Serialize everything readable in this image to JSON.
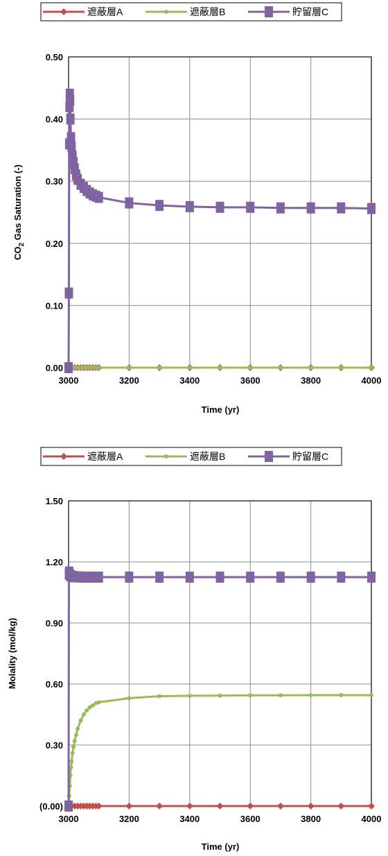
{
  "chart_data": [
    {
      "type": "line",
      "title": "",
      "xlabel": "Time (yr)",
      "ylabel_prefix": "CO",
      "ylabel_sub": "2",
      "ylabel_rest": " Gas Saturation (-)",
      "xlim": [
        3000,
        4000
      ],
      "ylim": [
        0,
        0.5
      ],
      "xticks": [
        3000,
        3200,
        3400,
        3600,
        3800,
        4000
      ],
      "yticks": [
        0,
        0.1,
        0.2,
        0.3,
        0.4,
        0.5
      ],
      "ytick_labels": [
        "0.00",
        "0.10",
        "0.20",
        "0.30",
        "0.40",
        "0.50"
      ],
      "grid": true,
      "legend_placement": "top",
      "series": [
        {
          "name": "遮蔽層A",
          "color": "#c0504d",
          "marker": "diamond",
          "x": [
            3000,
            3005,
            3010,
            3020,
            3030,
            3040,
            3050,
            3060,
            3070,
            3080,
            3090,
            3100,
            3200,
            3300,
            3400,
            3500,
            3600,
            3700,
            3800,
            3900,
            4000
          ],
          "y": [
            0,
            0,
            0,
            0,
            0,
            0,
            0,
            0,
            0,
            0,
            0,
            0,
            0,
            0,
            0,
            0,
            0,
            0,
            0,
            0,
            0
          ]
        },
        {
          "name": "遮蔽層B",
          "color": "#9bbb59",
          "marker": "circle",
          "x": [
            3000,
            3005,
            3010,
            3020,
            3030,
            3040,
            3050,
            3060,
            3070,
            3080,
            3090,
            3100,
            3200,
            3300,
            3400,
            3500,
            3600,
            3700,
            3800,
            3900,
            4000
          ],
          "y": [
            0,
            0,
            0,
            0,
            0,
            0,
            0,
            0,
            0,
            0,
            0,
            0,
            0,
            0,
            0,
            0,
            0,
            0,
            0,
            0,
            0
          ]
        },
        {
          "name": "貯留層C",
          "color": "#8064a2",
          "marker": "square",
          "x": [
            3000,
            3001,
            3002,
            3003,
            3004,
            3005,
            3006,
            3008,
            3010,
            3013,
            3016,
            3020,
            3025,
            3030,
            3040,
            3050,
            3060,
            3070,
            3080,
            3090,
            3100,
            3200,
            3300,
            3400,
            3500,
            3600,
            3700,
            3800,
            3900,
            4000
          ],
          "y": [
            0,
            0.12,
            0.36,
            0.42,
            0.44,
            0.43,
            0.4,
            0.37,
            0.355,
            0.34,
            0.33,
            0.32,
            0.31,
            0.303,
            0.295,
            0.29,
            0.285,
            0.281,
            0.278,
            0.276,
            0.274,
            0.265,
            0.261,
            0.259,
            0.258,
            0.258,
            0.257,
            0.257,
            0.257,
            0.256
          ]
        }
      ]
    },
    {
      "type": "line",
      "title": "",
      "xlabel": "Time (yr)",
      "ylabel": "Molality (mol/kg)",
      "xlim": [
        3000,
        4000
      ],
      "ylim": [
        0,
        1.5
      ],
      "xticks": [
        3000,
        3200,
        3400,
        3600,
        3800,
        4000
      ],
      "yticks": [
        0,
        0.3,
        0.6,
        0.9,
        1.2,
        1.5
      ],
      "ytick_labels": [
        "(0.00)",
        "0.30",
        "0.60",
        "0.90",
        "1.20",
        "1.50"
      ],
      "grid": true,
      "legend_placement": "top",
      "series": [
        {
          "name": "遮蔽層A",
          "color": "#c0504d",
          "marker": "diamond",
          "x": [
            3000,
            3005,
            3010,
            3020,
            3030,
            3040,
            3050,
            3060,
            3070,
            3080,
            3090,
            3100,
            3200,
            3300,
            3400,
            3500,
            3600,
            3700,
            3800,
            3900,
            4000
          ],
          "y": [
            0,
            0,
            0,
            0,
            0,
            0,
            0,
            0,
            0,
            0,
            0,
            0,
            0,
            0,
            0,
            0,
            0,
            0,
            0,
            0,
            0
          ]
        },
        {
          "name": "遮蔽層B",
          "color": "#9bbb59",
          "marker": "circle",
          "x": [
            3000,
            3002,
            3004,
            3006,
            3008,
            3010,
            3013,
            3016,
            3020,
            3025,
            3030,
            3040,
            3050,
            3060,
            3070,
            3080,
            3090,
            3100,
            3200,
            3300,
            3400,
            3500,
            3600,
            3700,
            3800,
            3900,
            4000
          ],
          "y": [
            0,
            0.05,
            0.1,
            0.15,
            0.19,
            0.22,
            0.26,
            0.29,
            0.32,
            0.35,
            0.38,
            0.42,
            0.45,
            0.47,
            0.485,
            0.495,
            0.505,
            0.51,
            0.53,
            0.54,
            0.542,
            0.543,
            0.544,
            0.544,
            0.545,
            0.545,
            0.545
          ]
        },
        {
          "name": "貯留層C",
          "color": "#8064a2",
          "marker": "square",
          "x": [
            3000,
            3001,
            3002,
            3003,
            3005,
            3008,
            3010,
            3015,
            3020,
            3030,
            3040,
            3050,
            3060,
            3070,
            3080,
            3090,
            3100,
            3200,
            3300,
            3400,
            3500,
            3600,
            3700,
            3800,
            3900,
            4000
          ],
          "y": [
            0,
            1.14,
            1.15,
            1.14,
            1.135,
            1.13,
            1.13,
            1.128,
            1.127,
            1.126,
            1.126,
            1.125,
            1.125,
            1.125,
            1.125,
            1.125,
            1.125,
            1.125,
            1.125,
            1.125,
            1.125,
            1.125,
            1.125,
            1.125,
            1.125,
            1.125
          ]
        }
      ]
    }
  ]
}
